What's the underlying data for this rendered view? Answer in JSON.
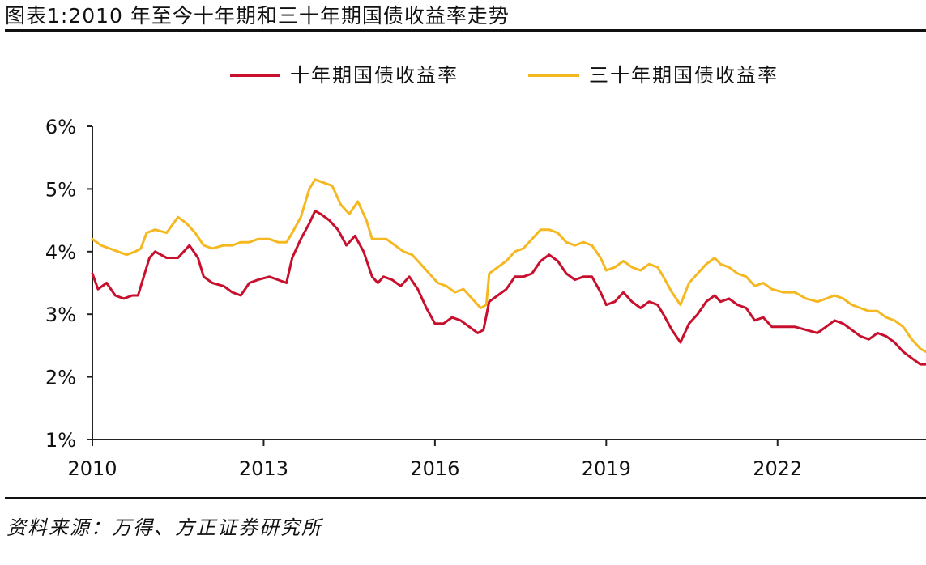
{
  "figure": {
    "title": "图表1:2010 年至今十年期和三十年期国债收益率走势",
    "source": "资料来源：万得、方正证券研究所"
  },
  "chart_data": {
    "type": "line",
    "title": "",
    "xlabel": "",
    "ylabel": "",
    "x_ticks": [
      2010,
      2013,
      2016,
      2019,
      2022
    ],
    "y_ticks": [
      "1%",
      "2%",
      "3%",
      "4%",
      "5%",
      "6%"
    ],
    "xlim": [
      2010.0,
      2024.6
    ],
    "ylim": [
      1,
      6
    ],
    "grid": false,
    "legend_position": "top",
    "series": [
      {
        "name": "十年期国债收益率",
        "color": "#c8102e",
        "points": [
          [
            2010.0,
            3.65
          ],
          [
            2010.1,
            3.4
          ],
          [
            2010.25,
            3.5
          ],
          [
            2010.4,
            3.3
          ],
          [
            2010.55,
            3.25
          ],
          [
            2010.7,
            3.3
          ],
          [
            2010.8,
            3.3
          ],
          [
            2010.9,
            3.6
          ],
          [
            2011.0,
            3.9
          ],
          [
            2011.1,
            4.0
          ],
          [
            2011.3,
            3.9
          ],
          [
            2011.5,
            3.9
          ],
          [
            2011.7,
            4.1
          ],
          [
            2011.85,
            3.9
          ],
          [
            2011.95,
            3.6
          ],
          [
            2012.1,
            3.5
          ],
          [
            2012.3,
            3.45
          ],
          [
            2012.45,
            3.35
          ],
          [
            2012.6,
            3.3
          ],
          [
            2012.75,
            3.5
          ],
          [
            2012.9,
            3.55
          ],
          [
            2013.1,
            3.6
          ],
          [
            2013.25,
            3.55
          ],
          [
            2013.4,
            3.5
          ],
          [
            2013.5,
            3.9
          ],
          [
            2013.65,
            4.2
          ],
          [
            2013.8,
            4.45
          ],
          [
            2013.9,
            4.65
          ],
          [
            2014.0,
            4.6
          ],
          [
            2014.15,
            4.5
          ],
          [
            2014.3,
            4.35
          ],
          [
            2014.45,
            4.1
          ],
          [
            2014.6,
            4.25
          ],
          [
            2014.75,
            4.0
          ],
          [
            2014.9,
            3.6
          ],
          [
            2015.0,
            3.5
          ],
          [
            2015.1,
            3.6
          ],
          [
            2015.25,
            3.55
          ],
          [
            2015.4,
            3.45
          ],
          [
            2015.55,
            3.6
          ],
          [
            2015.7,
            3.4
          ],
          [
            2015.85,
            3.1
          ],
          [
            2016.0,
            2.85
          ],
          [
            2016.15,
            2.85
          ],
          [
            2016.3,
            2.95
          ],
          [
            2016.45,
            2.9
          ],
          [
            2016.6,
            2.8
          ],
          [
            2016.75,
            2.7
          ],
          [
            2016.85,
            2.75
          ],
          [
            2016.95,
            3.2
          ],
          [
            2017.1,
            3.3
          ],
          [
            2017.25,
            3.4
          ],
          [
            2017.4,
            3.6
          ],
          [
            2017.55,
            3.6
          ],
          [
            2017.7,
            3.65
          ],
          [
            2017.85,
            3.85
          ],
          [
            2018.0,
            3.95
          ],
          [
            2018.15,
            3.85
          ],
          [
            2018.3,
            3.65
          ],
          [
            2018.45,
            3.55
          ],
          [
            2018.6,
            3.6
          ],
          [
            2018.75,
            3.6
          ],
          [
            2018.9,
            3.35
          ],
          [
            2019.0,
            3.15
          ],
          [
            2019.15,
            3.2
          ],
          [
            2019.3,
            3.35
          ],
          [
            2019.45,
            3.2
          ],
          [
            2019.6,
            3.1
          ],
          [
            2019.75,
            3.2
          ],
          [
            2019.9,
            3.15
          ],
          [
            2020.0,
            3.0
          ],
          [
            2020.15,
            2.75
          ],
          [
            2020.3,
            2.55
          ],
          [
            2020.45,
            2.85
          ],
          [
            2020.6,
            3.0
          ],
          [
            2020.75,
            3.2
          ],
          [
            2020.9,
            3.3
          ],
          [
            2021.0,
            3.2
          ],
          [
            2021.15,
            3.25
          ],
          [
            2021.3,
            3.15
          ],
          [
            2021.45,
            3.1
          ],
          [
            2021.6,
            2.9
          ],
          [
            2021.75,
            2.95
          ],
          [
            2021.9,
            2.8
          ],
          [
            2022.1,
            2.8
          ],
          [
            2022.3,
            2.8
          ],
          [
            2022.5,
            2.75
          ],
          [
            2022.7,
            2.7
          ],
          [
            2022.85,
            2.8
          ],
          [
            2023.0,
            2.9
          ],
          [
            2023.15,
            2.85
          ],
          [
            2023.3,
            2.75
          ],
          [
            2023.45,
            2.65
          ],
          [
            2023.6,
            2.6
          ],
          [
            2023.75,
            2.7
          ],
          [
            2023.9,
            2.65
          ],
          [
            2024.05,
            2.55
          ],
          [
            2024.2,
            2.4
          ],
          [
            2024.35,
            2.3
          ],
          [
            2024.5,
            2.2
          ],
          [
            2024.6,
            2.2
          ]
        ]
      },
      {
        "name": "三十年期国债收益率",
        "color": "#f5b821",
        "points": [
          [
            2010.0,
            4.2
          ],
          [
            2010.15,
            4.1
          ],
          [
            2010.3,
            4.05
          ],
          [
            2010.45,
            4.0
          ],
          [
            2010.6,
            3.95
          ],
          [
            2010.75,
            4.0
          ],
          [
            2010.85,
            4.05
          ],
          [
            2010.95,
            4.3
          ],
          [
            2011.1,
            4.35
          ],
          [
            2011.3,
            4.3
          ],
          [
            2011.5,
            4.55
          ],
          [
            2011.65,
            4.45
          ],
          [
            2011.8,
            4.3
          ],
          [
            2011.95,
            4.1
          ],
          [
            2012.1,
            4.05
          ],
          [
            2012.3,
            4.1
          ],
          [
            2012.45,
            4.1
          ],
          [
            2012.6,
            4.15
          ],
          [
            2012.75,
            4.15
          ],
          [
            2012.9,
            4.2
          ],
          [
            2013.1,
            4.2
          ],
          [
            2013.25,
            4.15
          ],
          [
            2013.4,
            4.15
          ],
          [
            2013.5,
            4.3
          ],
          [
            2013.65,
            4.55
          ],
          [
            2013.8,
            5.0
          ],
          [
            2013.9,
            5.15
          ],
          [
            2014.05,
            5.1
          ],
          [
            2014.2,
            5.05
          ],
          [
            2014.35,
            4.75
          ],
          [
            2014.5,
            4.6
          ],
          [
            2014.65,
            4.8
          ],
          [
            2014.8,
            4.5
          ],
          [
            2014.9,
            4.2
          ],
          [
            2015.0,
            4.2
          ],
          [
            2015.15,
            4.2
          ],
          [
            2015.3,
            4.1
          ],
          [
            2015.45,
            4.0
          ],
          [
            2015.6,
            3.95
          ],
          [
            2015.75,
            3.8
          ],
          [
            2015.9,
            3.65
          ],
          [
            2016.05,
            3.5
          ],
          [
            2016.2,
            3.45
          ],
          [
            2016.35,
            3.35
          ],
          [
            2016.5,
            3.4
          ],
          [
            2016.65,
            3.25
          ],
          [
            2016.8,
            3.1
          ],
          [
            2016.9,
            3.15
          ],
          [
            2016.95,
            3.65
          ],
          [
            2017.1,
            3.75
          ],
          [
            2017.25,
            3.85
          ],
          [
            2017.4,
            4.0
          ],
          [
            2017.55,
            4.05
          ],
          [
            2017.7,
            4.2
          ],
          [
            2017.85,
            4.35
          ],
          [
            2018.0,
            4.35
          ],
          [
            2018.15,
            4.3
          ],
          [
            2018.3,
            4.15
          ],
          [
            2018.45,
            4.1
          ],
          [
            2018.6,
            4.15
          ],
          [
            2018.75,
            4.1
          ],
          [
            2018.9,
            3.9
          ],
          [
            2019.0,
            3.7
          ],
          [
            2019.15,
            3.75
          ],
          [
            2019.3,
            3.85
          ],
          [
            2019.45,
            3.75
          ],
          [
            2019.6,
            3.7
          ],
          [
            2019.75,
            3.8
          ],
          [
            2019.9,
            3.75
          ],
          [
            2020.0,
            3.6
          ],
          [
            2020.15,
            3.35
          ],
          [
            2020.3,
            3.15
          ],
          [
            2020.45,
            3.5
          ],
          [
            2020.6,
            3.65
          ],
          [
            2020.75,
            3.8
          ],
          [
            2020.9,
            3.9
          ],
          [
            2021.0,
            3.8
          ],
          [
            2021.15,
            3.75
          ],
          [
            2021.3,
            3.65
          ],
          [
            2021.45,
            3.6
          ],
          [
            2021.6,
            3.45
          ],
          [
            2021.75,
            3.5
          ],
          [
            2021.9,
            3.4
          ],
          [
            2022.1,
            3.35
          ],
          [
            2022.3,
            3.35
          ],
          [
            2022.5,
            3.25
          ],
          [
            2022.7,
            3.2
          ],
          [
            2022.85,
            3.25
          ],
          [
            2023.0,
            3.3
          ],
          [
            2023.15,
            3.25
          ],
          [
            2023.3,
            3.15
          ],
          [
            2023.45,
            3.1
          ],
          [
            2023.6,
            3.05
          ],
          [
            2023.75,
            3.05
          ],
          [
            2023.9,
            2.95
          ],
          [
            2024.05,
            2.9
          ],
          [
            2024.2,
            2.8
          ],
          [
            2024.35,
            2.6
          ],
          [
            2024.5,
            2.45
          ],
          [
            2024.6,
            2.4
          ]
        ]
      }
    ]
  }
}
